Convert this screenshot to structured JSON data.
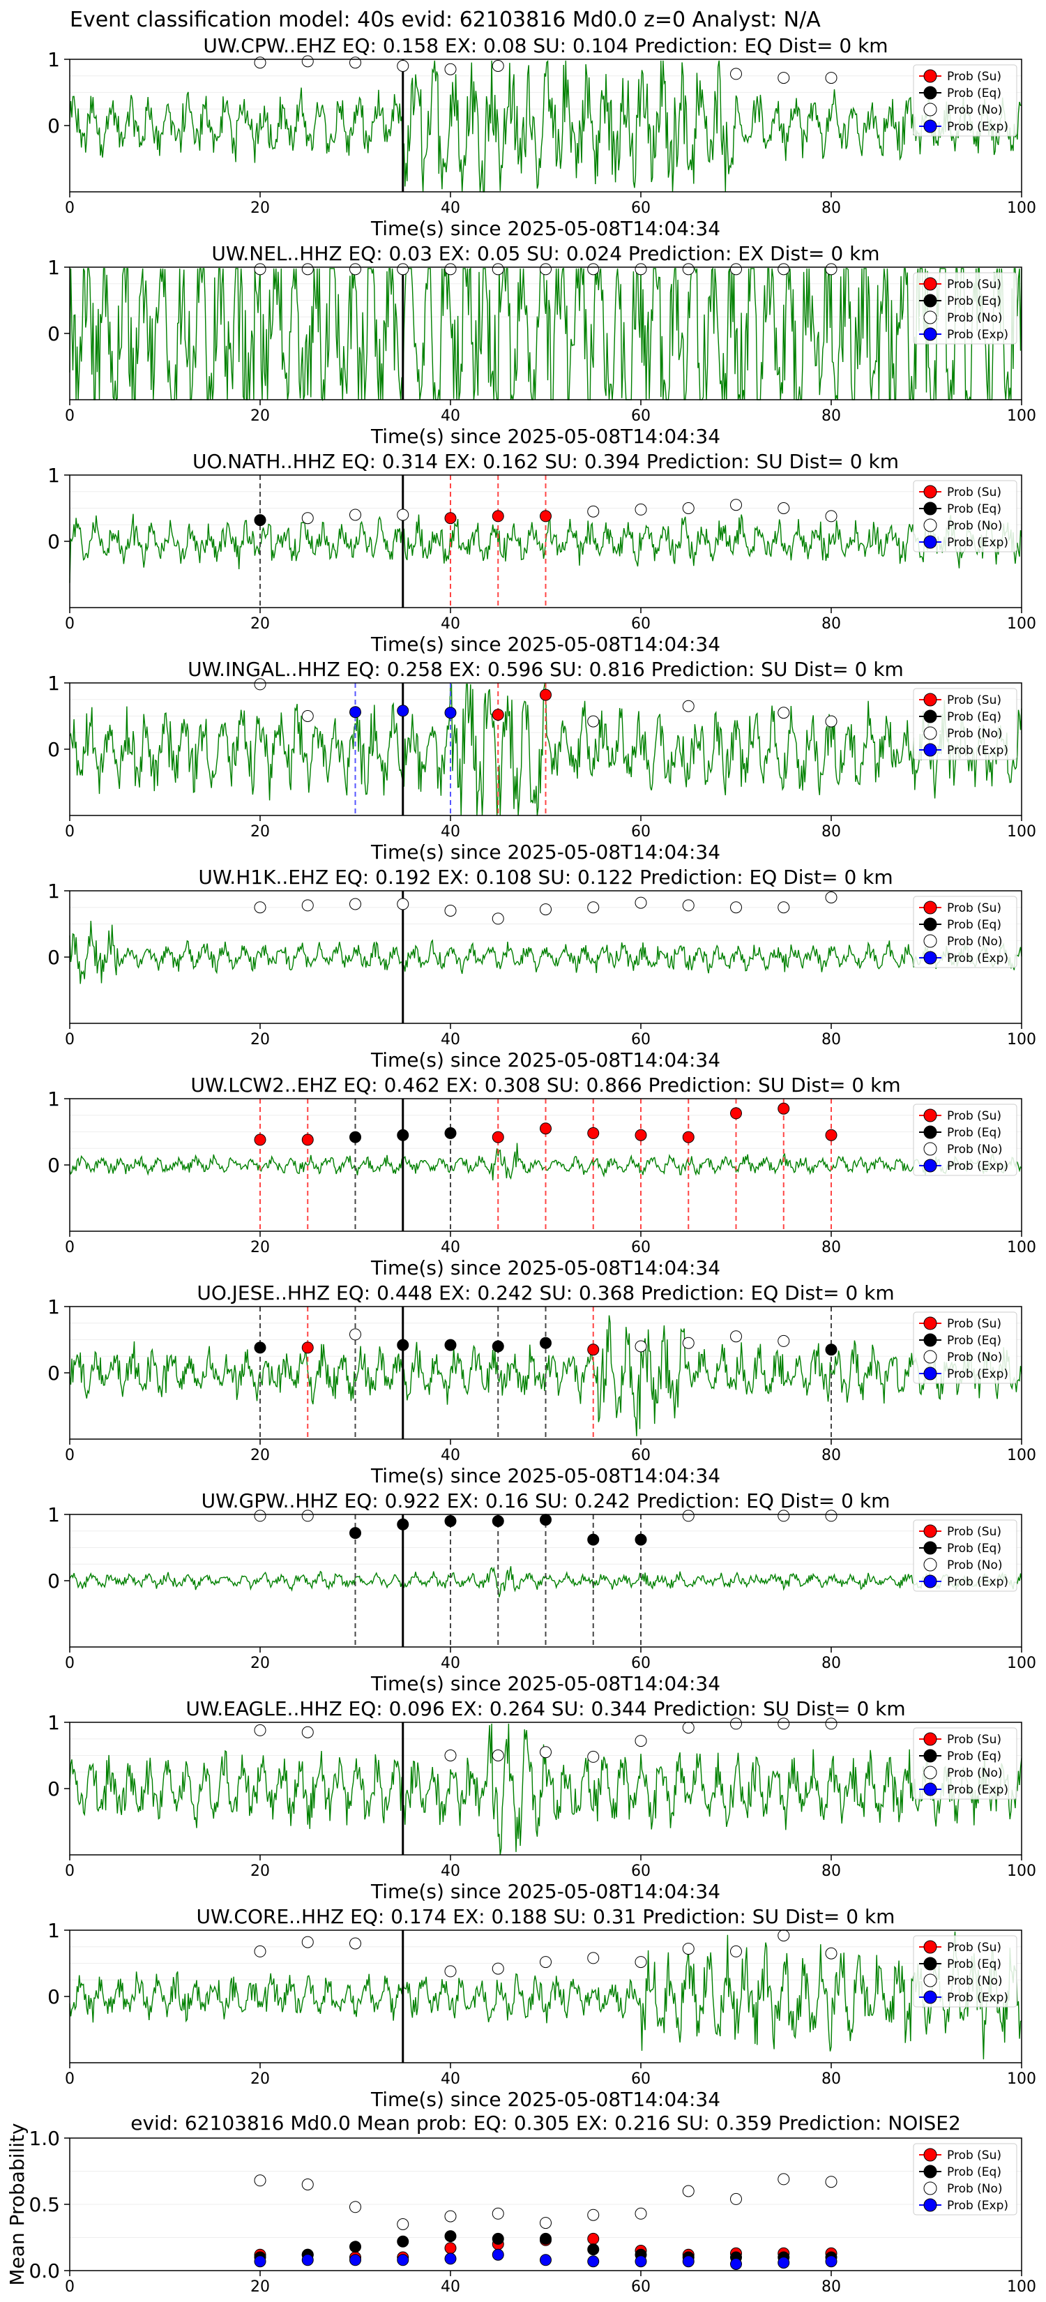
{
  "suptitle": "Event classification model: 40s evid: 62103816 Md0.0 z=0 Analyst: N/A",
  "xlabel": "Time(s) since 2025-05-08T14:04:34",
  "legend": [
    "Prob (Su)",
    "Prob (Eq)",
    "Prob (No)",
    "Prob (Exp)"
  ],
  "colors": {
    "su": "#ff0000",
    "eq": "#000000",
    "no": "#ffffff",
    "exp": "#0000ff",
    "waveform": "#008000",
    "pick_line": "#000000"
  },
  "chart_data": {
    "type": "line",
    "xlim": [
      0,
      100
    ],
    "xticks": [
      0,
      20,
      40,
      60,
      80,
      100
    ],
    "x": [
      20,
      25,
      30,
      35,
      40,
      45,
      50,
      55,
      60,
      65,
      70,
      75,
      80
    ],
    "pick_time": 35,
    "panels": [
      {
        "title": "UW.CPW..EHZ   EQ: 0.158  EX: 0.08  SU: 0.104   Prediction: EQ    Dist= 0 km",
        "ylim": [
          -1,
          1
        ],
        "yticks": [
          0,
          1
        ],
        "amplitude": 0.4,
        "noise_burst": [
          35,
          70
        ],
        "points": [
          {
            "x": 20,
            "y": 0.95,
            "cls": "no"
          },
          {
            "x": 25,
            "y": 0.97,
            "cls": "no"
          },
          {
            "x": 30,
            "y": 0.95,
            "cls": "no"
          },
          {
            "x": 35,
            "y": 0.9,
            "cls": "no"
          },
          {
            "x": 40,
            "y": 0.85,
            "cls": "no"
          },
          {
            "x": 45,
            "y": 0.9,
            "cls": "no"
          },
          {
            "x": 70,
            "y": 0.78,
            "cls": "no"
          },
          {
            "x": 75,
            "y": 0.72,
            "cls": "no"
          },
          {
            "x": 80,
            "y": 0.72,
            "cls": "no"
          }
        ],
        "vlines": []
      },
      {
        "title": "UW.NEL..HHZ   EQ: 0.03  EX: 0.05  SU: 0.024   Prediction: EX    Dist= 0 km",
        "ylim": [
          -1,
          1
        ],
        "yticks": [
          0,
          1
        ],
        "amplitude": 0.75,
        "noise_burst": [
          0,
          100
        ],
        "points": [
          {
            "x": 20,
            "y": 0.97,
            "cls": "no"
          },
          {
            "x": 25,
            "y": 0.97,
            "cls": "no"
          },
          {
            "x": 30,
            "y": 0.97,
            "cls": "no"
          },
          {
            "x": 35,
            "y": 0.97,
            "cls": "no"
          },
          {
            "x": 40,
            "y": 0.97,
            "cls": "no"
          },
          {
            "x": 45,
            "y": 0.97,
            "cls": "no"
          },
          {
            "x": 50,
            "y": 0.97,
            "cls": "no"
          },
          {
            "x": 55,
            "y": 0.97,
            "cls": "no"
          },
          {
            "x": 60,
            "y": 0.97,
            "cls": "no"
          },
          {
            "x": 65,
            "y": 0.97,
            "cls": "no"
          },
          {
            "x": 70,
            "y": 0.97,
            "cls": "no"
          },
          {
            "x": 75,
            "y": 0.97,
            "cls": "no"
          },
          {
            "x": 80,
            "y": 0.97,
            "cls": "no"
          }
        ],
        "vlines": []
      },
      {
        "title": "UO.NATH..HHZ   EQ: 0.314  EX: 0.162  SU: 0.394   Prediction: SU    Dist= 0 km",
        "ylim": [
          -1,
          1
        ],
        "yticks": [
          0,
          1
        ],
        "amplitude": 0.3,
        "noise_burst": [
          0,
          0
        ],
        "points": [
          {
            "x": 20,
            "y": 0.32,
            "cls": "eq"
          },
          {
            "x": 25,
            "y": 0.35,
            "cls": "no"
          },
          {
            "x": 30,
            "y": 0.4,
            "cls": "no"
          },
          {
            "x": 35,
            "y": 0.4,
            "cls": "no"
          },
          {
            "x": 40,
            "y": 0.35,
            "cls": "su"
          },
          {
            "x": 45,
            "y": 0.38,
            "cls": "su"
          },
          {
            "x": 50,
            "y": 0.38,
            "cls": "su"
          },
          {
            "x": 55,
            "y": 0.45,
            "cls": "no"
          },
          {
            "x": 60,
            "y": 0.48,
            "cls": "no"
          },
          {
            "x": 65,
            "y": 0.5,
            "cls": "no"
          },
          {
            "x": 70,
            "y": 0.55,
            "cls": "no"
          },
          {
            "x": 75,
            "y": 0.5,
            "cls": "no"
          },
          {
            "x": 80,
            "y": 0.38,
            "cls": "no"
          }
        ],
        "vlines": [
          {
            "x": 20,
            "cls": "eq"
          },
          {
            "x": 40,
            "cls": "su"
          },
          {
            "x": 45,
            "cls": "su"
          },
          {
            "x": 50,
            "cls": "su"
          }
        ]
      },
      {
        "title": "UW.INGAL..HHZ   EQ: 0.258  EX: 0.596  SU: 0.816   Prediction: SU    Dist= 0 km",
        "ylim": [
          -1,
          1
        ],
        "yticks": [
          0,
          1
        ],
        "amplitude": 0.55,
        "noise_burst": [
          40,
          50
        ],
        "points": [
          {
            "x": 20,
            "y": 0.98,
            "cls": "no"
          },
          {
            "x": 25,
            "y": 0.5,
            "cls": "no"
          },
          {
            "x": 30,
            "y": 0.56,
            "cls": "exp"
          },
          {
            "x": 35,
            "y": 0.58,
            "cls": "exp"
          },
          {
            "x": 40,
            "y": 0.55,
            "cls": "exp"
          },
          {
            "x": 45,
            "y": 0.52,
            "cls": "su"
          },
          {
            "x": 50,
            "y": 0.82,
            "cls": "su"
          },
          {
            "x": 55,
            "y": 0.42,
            "cls": "no"
          },
          {
            "x": 65,
            "y": 0.65,
            "cls": "no"
          },
          {
            "x": 75,
            "y": 0.55,
            "cls": "no"
          },
          {
            "x": 80,
            "y": 0.42,
            "cls": "no"
          }
        ],
        "vlines": [
          {
            "x": 30,
            "cls": "exp"
          },
          {
            "x": 40,
            "cls": "exp"
          },
          {
            "x": 45,
            "cls": "su"
          },
          {
            "x": 50,
            "cls": "su"
          }
        ]
      },
      {
        "title": "UW.H1K..EHZ   EQ: 0.192  EX: 0.108  SU: 0.122   Prediction: EQ    Dist= 0 km",
        "ylim": [
          -1,
          1
        ],
        "yticks": [
          0,
          1
        ],
        "amplitude": 0.18,
        "noise_burst": [
          0,
          5
        ],
        "points": [
          {
            "x": 20,
            "y": 0.75,
            "cls": "no"
          },
          {
            "x": 25,
            "y": 0.78,
            "cls": "no"
          },
          {
            "x": 30,
            "y": 0.8,
            "cls": "no"
          },
          {
            "x": 35,
            "y": 0.8,
            "cls": "no"
          },
          {
            "x": 40,
            "y": 0.7,
            "cls": "no"
          },
          {
            "x": 45,
            "y": 0.58,
            "cls": "no"
          },
          {
            "x": 50,
            "y": 0.72,
            "cls": "no"
          },
          {
            "x": 55,
            "y": 0.75,
            "cls": "no"
          },
          {
            "x": 60,
            "y": 0.82,
            "cls": "no"
          },
          {
            "x": 65,
            "y": 0.78,
            "cls": "no"
          },
          {
            "x": 70,
            "y": 0.75,
            "cls": "no"
          },
          {
            "x": 75,
            "y": 0.75,
            "cls": "no"
          },
          {
            "x": 80,
            "y": 0.9,
            "cls": "no"
          }
        ],
        "vlines": []
      },
      {
        "title": "UW.LCW2..EHZ   EQ: 0.462  EX: 0.308  SU: 0.866   Prediction: SU    Dist= 0 km",
        "ylim": [
          -1,
          1
        ],
        "yticks": [
          0,
          1
        ],
        "amplitude": 0.12,
        "noise_burst": [
          44,
          47
        ],
        "points": [
          {
            "x": 20,
            "y": 0.38,
            "cls": "su"
          },
          {
            "x": 25,
            "y": 0.38,
            "cls": "su"
          },
          {
            "x": 30,
            "y": 0.42,
            "cls": "eq"
          },
          {
            "x": 35,
            "y": 0.45,
            "cls": "eq"
          },
          {
            "x": 40,
            "y": 0.48,
            "cls": "eq"
          },
          {
            "x": 45,
            "y": 0.42,
            "cls": "su"
          },
          {
            "x": 50,
            "y": 0.55,
            "cls": "su"
          },
          {
            "x": 55,
            "y": 0.48,
            "cls": "su"
          },
          {
            "x": 60,
            "y": 0.45,
            "cls": "su"
          },
          {
            "x": 65,
            "y": 0.42,
            "cls": "su"
          },
          {
            "x": 70,
            "y": 0.78,
            "cls": "su"
          },
          {
            "x": 75,
            "y": 0.85,
            "cls": "su"
          },
          {
            "x": 80,
            "y": 0.45,
            "cls": "su"
          }
        ],
        "vlines": [
          {
            "x": 20,
            "cls": "su"
          },
          {
            "x": 25,
            "cls": "su"
          },
          {
            "x": 30,
            "cls": "eq"
          },
          {
            "x": 40,
            "cls": "eq"
          },
          {
            "x": 45,
            "cls": "su"
          },
          {
            "x": 50,
            "cls": "su"
          },
          {
            "x": 55,
            "cls": "su"
          },
          {
            "x": 60,
            "cls": "su"
          },
          {
            "x": 65,
            "cls": "su"
          },
          {
            "x": 70,
            "cls": "su"
          },
          {
            "x": 75,
            "cls": "su"
          },
          {
            "x": 80,
            "cls": "su"
          }
        ]
      },
      {
        "title": "UO.JESE..HHZ   EQ: 0.448  EX: 0.242  SU: 0.368   Prediction: EQ    Dist= 0 km",
        "ylim": [
          -1,
          1
        ],
        "yticks": [
          0,
          1
        ],
        "amplitude": 0.35,
        "noise_burst": [
          55,
          65
        ],
        "points": [
          {
            "x": 20,
            "y": 0.38,
            "cls": "eq"
          },
          {
            "x": 25,
            "y": 0.38,
            "cls": "su"
          },
          {
            "x": 30,
            "y": 0.58,
            "cls": "no"
          },
          {
            "x": 35,
            "y": 0.42,
            "cls": "eq"
          },
          {
            "x": 40,
            "y": 0.42,
            "cls": "eq"
          },
          {
            "x": 45,
            "y": 0.4,
            "cls": "eq"
          },
          {
            "x": 50,
            "y": 0.45,
            "cls": "eq"
          },
          {
            "x": 55,
            "y": 0.35,
            "cls": "su"
          },
          {
            "x": 60,
            "y": 0.4,
            "cls": "no"
          },
          {
            "x": 65,
            "y": 0.45,
            "cls": "no"
          },
          {
            "x": 70,
            "y": 0.55,
            "cls": "no"
          },
          {
            "x": 75,
            "y": 0.48,
            "cls": "no"
          },
          {
            "x": 80,
            "y": 0.35,
            "cls": "eq"
          }
        ],
        "vlines": [
          {
            "x": 20,
            "cls": "eq"
          },
          {
            "x": 25,
            "cls": "su"
          },
          {
            "x": 30,
            "cls": "eq"
          },
          {
            "x": 45,
            "cls": "eq"
          },
          {
            "x": 50,
            "cls": "eq"
          },
          {
            "x": 55,
            "cls": "su"
          },
          {
            "x": 80,
            "cls": "eq"
          }
        ]
      },
      {
        "title": "UW.GPW..HHZ   EQ: 0.922  EX: 0.16  SU: 0.242   Prediction: EQ    Dist= 0 km",
        "ylim": [
          -1,
          1
        ],
        "yticks": [
          0,
          1
        ],
        "amplitude": 0.1,
        "noise_burst": [
          44,
          47
        ],
        "points": [
          {
            "x": 20,
            "y": 0.98,
            "cls": "no"
          },
          {
            "x": 25,
            "y": 0.98,
            "cls": "no"
          },
          {
            "x": 30,
            "y": 0.72,
            "cls": "eq"
          },
          {
            "x": 35,
            "y": 0.85,
            "cls": "eq"
          },
          {
            "x": 40,
            "y": 0.9,
            "cls": "eq"
          },
          {
            "x": 45,
            "y": 0.9,
            "cls": "eq"
          },
          {
            "x": 50,
            "y": 0.92,
            "cls": "eq"
          },
          {
            "x": 55,
            "y": 0.62,
            "cls": "eq"
          },
          {
            "x": 60,
            "y": 0.62,
            "cls": "eq"
          },
          {
            "x": 65,
            "y": 0.98,
            "cls": "no"
          },
          {
            "x": 75,
            "y": 0.98,
            "cls": "no"
          },
          {
            "x": 80,
            "y": 0.98,
            "cls": "no"
          }
        ],
        "vlines": [
          {
            "x": 30,
            "cls": "eq"
          },
          {
            "x": 40,
            "cls": "eq"
          },
          {
            "x": 45,
            "cls": "eq"
          },
          {
            "x": 50,
            "cls": "eq"
          },
          {
            "x": 55,
            "cls": "eq"
          },
          {
            "x": 60,
            "cls": "eq"
          }
        ]
      },
      {
        "title": "UW.EAGLE..HHZ   EQ: 0.096  EX: 0.264  SU: 0.344   Prediction: SU    Dist= 0 km",
        "ylim": [
          -1,
          1
        ],
        "yticks": [
          0,
          1
        ],
        "amplitude": 0.45,
        "noise_burst": [
          44,
          50
        ],
        "points": [
          {
            "x": 20,
            "y": 0.88,
            "cls": "no"
          },
          {
            "x": 25,
            "y": 0.85,
            "cls": "no"
          },
          {
            "x": 40,
            "y": 0.5,
            "cls": "no"
          },
          {
            "x": 45,
            "y": 0.5,
            "cls": "no"
          },
          {
            "x": 50,
            "y": 0.55,
            "cls": "no"
          },
          {
            "x": 55,
            "y": 0.48,
            "cls": "no"
          },
          {
            "x": 60,
            "y": 0.72,
            "cls": "no"
          },
          {
            "x": 65,
            "y": 0.92,
            "cls": "no"
          },
          {
            "x": 70,
            "y": 0.98,
            "cls": "no"
          },
          {
            "x": 75,
            "y": 0.98,
            "cls": "no"
          },
          {
            "x": 80,
            "y": 0.98,
            "cls": "no"
          }
        ],
        "vlines": []
      },
      {
        "title": "UW.CORE..HHZ   EQ: 0.174  EX: 0.188  SU: 0.31   Prediction: SU    Dist= 0 km",
        "ylim": [
          -1,
          1
        ],
        "yticks": [
          0,
          1
        ],
        "amplitude": 0.3,
        "noise_burst": [
          60,
          100
        ],
        "points": [
          {
            "x": 20,
            "y": 0.68,
            "cls": "no"
          },
          {
            "x": 25,
            "y": 0.82,
            "cls": "no"
          },
          {
            "x": 30,
            "y": 0.8,
            "cls": "no"
          },
          {
            "x": 40,
            "y": 0.38,
            "cls": "no"
          },
          {
            "x": 45,
            "y": 0.42,
            "cls": "no"
          },
          {
            "x": 50,
            "y": 0.52,
            "cls": "no"
          },
          {
            "x": 55,
            "y": 0.58,
            "cls": "no"
          },
          {
            "x": 60,
            "y": 0.52,
            "cls": "no"
          },
          {
            "x": 65,
            "y": 0.72,
            "cls": "no"
          },
          {
            "x": 70,
            "y": 0.68,
            "cls": "no"
          },
          {
            "x": 75,
            "y": 0.92,
            "cls": "no"
          },
          {
            "x": 80,
            "y": 0.65,
            "cls": "no"
          }
        ],
        "vlines": []
      }
    ],
    "summary": {
      "title": "evid: 62103816  Md0.0   Mean prob:   EQ: 0.305  EX: 0.216  SU: 0.359   Prediction: NOISE2",
      "ylabel": "Mean Probability",
      "ylim": [
        0,
        1
      ],
      "yticks": [
        0.0,
        0.5,
        1.0
      ],
      "series": [
        {
          "name": "Prob (Su)",
          "cls": "su",
          "values": [
            0.12,
            0.12,
            0.1,
            0.1,
            0.17,
            0.2,
            0.23,
            0.24,
            0.15,
            0.12,
            0.13,
            0.13,
            0.13
          ]
        },
        {
          "name": "Prob (Eq)",
          "cls": "eq",
          "values": [
            0.1,
            0.12,
            0.18,
            0.22,
            0.26,
            0.24,
            0.24,
            0.16,
            0.12,
            0.1,
            0.1,
            0.1,
            0.1
          ]
        },
        {
          "name": "Prob (No)",
          "cls": "no",
          "values": [
            0.68,
            0.65,
            0.48,
            0.35,
            0.41,
            0.43,
            0.36,
            0.42,
            0.43,
            0.6,
            0.54,
            0.69,
            0.67
          ]
        },
        {
          "name": "Prob (Exp)",
          "cls": "exp",
          "values": [
            0.07,
            0.08,
            0.08,
            0.08,
            0.09,
            0.12,
            0.08,
            0.07,
            0.07,
            0.07,
            0.05,
            0.06,
            0.07
          ]
        }
      ]
    }
  }
}
